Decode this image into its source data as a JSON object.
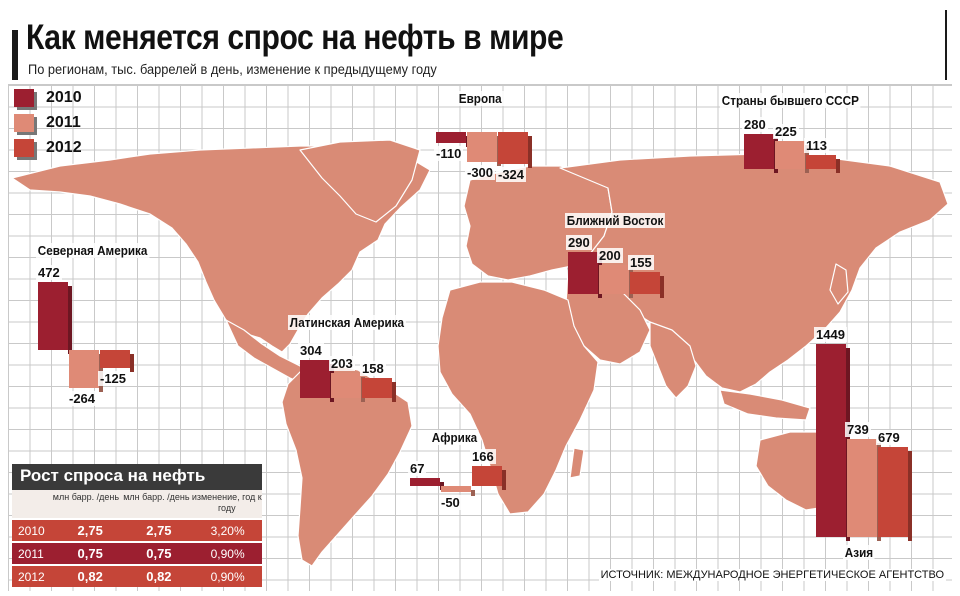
{
  "title": "Как меняется спрос на нефть в мире",
  "subtitle": "По регионам, тыс. баррелей в день, изменение к предыдущему году",
  "source": "ИСТОЧНИК: МЕЖДУНАРОДНОЕ ЭНЕРГЕТИЧЕСКОЕ АГЕНТСТВО",
  "colors": {
    "y2010": "#9c1f30",
    "y2011": "#df8a76",
    "y2012": "#c54538",
    "land": "#d98b76",
    "land_stroke": "#ffffff"
  },
  "legend": [
    {
      "label": "2010",
      "color": "#9c1f30"
    },
    {
      "label": "2011",
      "color": "#df8a76"
    },
    {
      "label": "2012",
      "color": "#c54538"
    }
  ],
  "chart_data": {
    "type": "bar",
    "categories": [
      "2010",
      "2011",
      "2012"
    ],
    "unit": "тыс. баррелей в день",
    "regions": [
      {
        "name": "Северная Америка",
        "values": [
          472,
          -264,
          -125
        ]
      },
      {
        "name": "Латинская Америка",
        "values": [
          304,
          203,
          158
        ]
      },
      {
        "name": "Европа",
        "values": [
          -110,
          -300,
          -324
        ]
      },
      {
        "name": "Африка",
        "values": [
          67,
          -50,
          166
        ]
      },
      {
        "name": "Ближний Восток",
        "values": [
          290,
          200,
          155
        ]
      },
      {
        "name": "Страны бывшего СССР",
        "values": [
          280,
          225,
          113
        ]
      },
      {
        "name": "Азия",
        "values": [
          1449,
          739,
          679
        ]
      }
    ]
  },
  "table": {
    "title": "Рост спроса на нефть",
    "columns": [
      "",
      "млн барр. /день",
      "млн барр. /день",
      "изменение, год к году"
    ],
    "rows": [
      {
        "year": "2010",
        "a": "2,75",
        "b": "2,75",
        "c": "3,20%"
      },
      {
        "year": "2011",
        "a": "0,75",
        "b": "0,75",
        "c": "0,90%"
      },
      {
        "year": "2012",
        "a": "0,82",
        "b": "0,82",
        "c": "0,90%"
      }
    ],
    "row_colors": [
      "#c54538",
      "#9c1f30",
      "#c54538"
    ]
  }
}
